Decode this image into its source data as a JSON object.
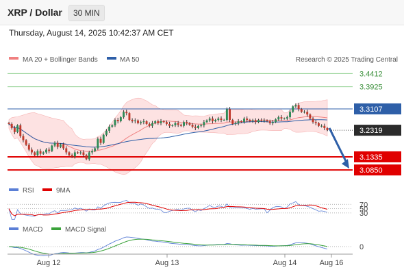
{
  "header": {
    "title": "XRP / Dollar",
    "timeframe": "30 MIN"
  },
  "datetime": "Thursday, August 14, 2025 10:42:37 AM CET",
  "chart_data": [
    {
      "type": "candlestick",
      "panel": "price",
      "legend": [
        {
          "name": "MA 20 + Bollinger Bands",
          "color": "#f08080"
        },
        {
          "name": "MA 50",
          "color": "#2e5fa8"
        }
      ],
      "credit": "Research © 2025 Trading Central",
      "ylim": [
        3.06,
        3.46
      ],
      "x_tick_labels": [
        "Aug 12",
        "Aug 13",
        "Aug 14",
        "Aug 16"
      ],
      "last_price": 3.2319,
      "levels": [
        {
          "value": 3.4412,
          "label": "3.4412",
          "kind": "target",
          "color": "#8fd18f"
        },
        {
          "value": 3.3925,
          "label": "3.3925",
          "kind": "target",
          "color": "#8fd18f"
        },
        {
          "value": 3.3107,
          "label": "3.3107",
          "kind": "pivot",
          "color": "#2e5fa8"
        },
        {
          "value": 3.2319,
          "label": "3.2319",
          "kind": "last",
          "color": "#2b2b2b"
        },
        {
          "value": 3.1335,
          "label": "3.1335",
          "kind": "support",
          "color": "#e00000"
        },
        {
          "value": 3.085,
          "label": "3.0850",
          "kind": "support",
          "color": "#e00000"
        }
      ],
      "forecast_arrow": {
        "from": 3.24,
        "to": 3.09,
        "color": "#2e5fa8"
      },
      "close": [
        3.255,
        3.24,
        3.225,
        3.25,
        3.21,
        3.195,
        3.178,
        3.16,
        3.15,
        3.14,
        3.155,
        3.145,
        3.15,
        3.16,
        3.155,
        3.175,
        3.185,
        3.17,
        3.18,
        3.165,
        3.15,
        3.14,
        3.135,
        3.15,
        3.148,
        3.15,
        3.14,
        3.125,
        3.15,
        3.155,
        3.165,
        3.2,
        3.185,
        3.215,
        3.23,
        3.245,
        3.25,
        3.27,
        3.265,
        3.28,
        3.3,
        3.295,
        3.27,
        3.265,
        3.268,
        3.258,
        3.262,
        3.265,
        3.255,
        3.248,
        3.258,
        3.265,
        3.258,
        3.265,
        3.262,
        3.255,
        3.248,
        3.25,
        3.258,
        3.252,
        3.248,
        3.262,
        3.258,
        3.252,
        3.245,
        3.24,
        3.248,
        3.25,
        3.262,
        3.268,
        3.275,
        3.265,
        3.27,
        3.275,
        3.27,
        3.27,
        3.31,
        3.27,
        3.255,
        3.258,
        3.265,
        3.262,
        3.275,
        3.27,
        3.265,
        3.268,
        3.262,
        3.27,
        3.268,
        3.268,
        3.265,
        3.258,
        3.262,
        3.272,
        3.28,
        3.275,
        3.275,
        3.28,
        3.3,
        3.32,
        3.325,
        3.31,
        3.3,
        3.3,
        3.29,
        3.275,
        3.262,
        3.258,
        3.248,
        3.248,
        3.24,
        3.232
      ]
    },
    {
      "type": "line",
      "panel": "rsi",
      "series": [
        {
          "name": "RSI",
          "color": "#5b7fd6"
        },
        {
          "name": "9MA",
          "color": "#e00000"
        }
      ],
      "levels": [
        70,
        50,
        30
      ],
      "level_labels": [
        "70",
        "50",
        "30"
      ]
    },
    {
      "type": "line",
      "panel": "macd",
      "series": [
        {
          "name": "MACD",
          "color": "#5b7fd6"
        },
        {
          "name": "MACD Signal",
          "color": "#3aa23a"
        }
      ],
      "levels": [
        0
      ],
      "level_labels": [
        "0"
      ]
    }
  ]
}
